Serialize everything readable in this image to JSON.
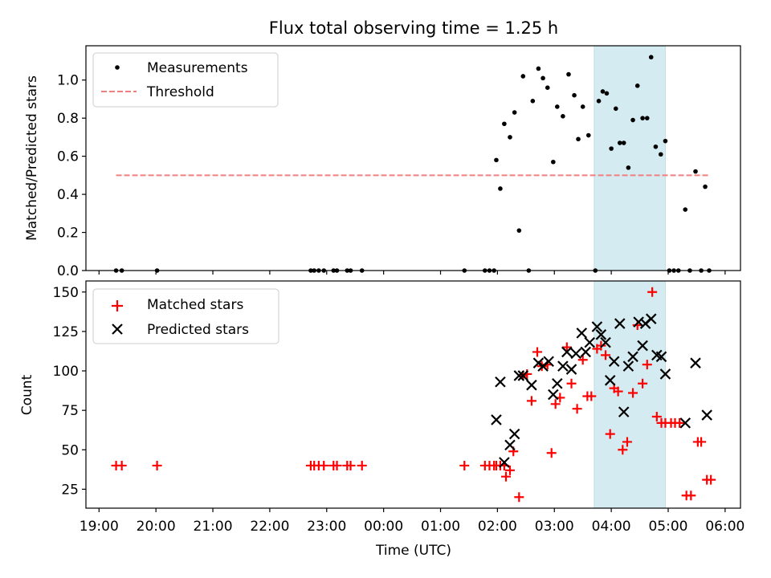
{
  "chart_data": [
    {
      "type": "scatter",
      "title": "Flux total observing time = 1.25 h",
      "xlabel": "",
      "ylabel": "Matched/Predicted stars",
      "xlim": [
        18.77,
        6.27
      ],
      "ylim": [
        0.0,
        1.18
      ],
      "yticks": [
        0.0,
        0.2,
        0.4,
        0.6,
        0.8,
        1.0
      ],
      "ytick_labels": [
        "0.0",
        "0.2",
        "0.4",
        "0.6",
        "0.8",
        "1.0"
      ],
      "shaded_span": [
        3.7,
        4.95
      ],
      "shade_color": "#d4ebf1",
      "legend": {
        "position": "top-left",
        "entries": [
          "Measurements",
          "Threshold"
        ]
      },
      "series": [
        {
          "name": "Measurements",
          "marker": "dot",
          "color": "#000000",
          "points": [
            [
              19.3,
              0.0
            ],
            [
              19.4,
              0.0
            ],
            [
              20.02,
              0.0
            ],
            [
              22.72,
              0.0
            ],
            [
              22.78,
              0.0
            ],
            [
              22.86,
              0.0
            ],
            [
              22.95,
              0.0
            ],
            [
              23.12,
              0.0
            ],
            [
              23.18,
              0.0
            ],
            [
              23.36,
              0.0
            ],
            [
              23.42,
              0.0
            ],
            [
              23.62,
              0.0
            ],
            [
              1.42,
              0.0
            ],
            [
              1.78,
              0.0
            ],
            [
              1.86,
              0.0
            ],
            [
              1.94,
              0.0
            ],
            [
              1.98,
              0.58
            ],
            [
              2.05,
              0.43
            ],
            [
              2.12,
              0.77
            ],
            [
              2.22,
              0.7
            ],
            [
              2.3,
              0.83
            ],
            [
              2.38,
              0.21
            ],
            [
              2.45,
              1.02
            ],
            [
              2.55,
              0.0
            ],
            [
              2.62,
              0.89
            ],
            [
              2.72,
              1.06
            ],
            [
              2.8,
              1.01
            ],
            [
              2.88,
              0.96
            ],
            [
              2.98,
              0.57
            ],
            [
              3.05,
              0.86
            ],
            [
              3.15,
              0.81
            ],
            [
              3.25,
              1.03
            ],
            [
              3.35,
              0.92
            ],
            [
              3.42,
              0.69
            ],
            [
              3.5,
              0.86
            ],
            [
              3.6,
              0.71
            ],
            [
              3.72,
              0.0
            ],
            [
              3.78,
              0.89
            ],
            [
              3.85,
              0.94
            ],
            [
              3.92,
              0.93
            ],
            [
              4.0,
              0.64
            ],
            [
              4.08,
              0.85
            ],
            [
              4.15,
              0.67
            ],
            [
              4.22,
              0.67
            ],
            [
              4.3,
              0.54
            ],
            [
              4.38,
              0.79
            ],
            [
              4.46,
              0.97
            ],
            [
              4.55,
              0.8
            ],
            [
              4.63,
              0.8
            ],
            [
              4.7,
              1.12
            ],
            [
              4.78,
              0.65
            ],
            [
              4.87,
              0.61
            ],
            [
              4.95,
              0.68
            ],
            [
              5.02,
              0.0
            ],
            [
              5.1,
              0.0
            ],
            [
              5.18,
              0.0
            ],
            [
              5.3,
              0.32
            ],
            [
              5.38,
              0.0
            ],
            [
              5.48,
              0.52
            ],
            [
              5.58,
              0.0
            ],
            [
              5.65,
              0.44
            ],
            [
              5.72,
              0.0
            ]
          ]
        },
        {
          "name": "Threshold",
          "style": "dashed",
          "color": "#f08080",
          "x": [
            19.3,
            5.72
          ],
          "y": [
            0.5,
            0.5
          ]
        }
      ]
    },
    {
      "type": "scatter",
      "xlabel": "Time (UTC)",
      "ylabel": "Count",
      "xlim": [
        18.77,
        6.27
      ],
      "ylim": [
        13,
        157
      ],
      "xticks": [
        19,
        20,
        21,
        22,
        23,
        0,
        1,
        2,
        3,
        4,
        5,
        6
      ],
      "xtick_labels": [
        "19:00",
        "20:00",
        "21:00",
        "22:00",
        "23:00",
        "00:00",
        "01:00",
        "02:00",
        "03:00",
        "04:00",
        "05:00",
        "06:00"
      ],
      "yticks": [
        25,
        50,
        75,
        100,
        125,
        150
      ],
      "ytick_labels": [
        "25",
        "50",
        "75",
        "100",
        "125",
        "150"
      ],
      "shaded_span": [
        3.7,
        4.95
      ],
      "shade_color": "#d4ebf1",
      "legend": {
        "position": "top-left",
        "entries": [
          "Matched stars",
          "Predicted stars"
        ]
      },
      "series": [
        {
          "name": "Matched stars",
          "marker": "plus",
          "color": "#ff0000",
          "points": [
            [
              19.3,
              40
            ],
            [
              19.4,
              40
            ],
            [
              20.02,
              40
            ],
            [
              22.72,
              40
            ],
            [
              22.78,
              40
            ],
            [
              22.86,
              40
            ],
            [
              22.95,
              40
            ],
            [
              23.12,
              40
            ],
            [
              23.18,
              40
            ],
            [
              23.36,
              40
            ],
            [
              23.42,
              40
            ],
            [
              23.62,
              40
            ],
            [
              1.42,
              40
            ],
            [
              1.78,
              40
            ],
            [
              1.86,
              40
            ],
            [
              1.94,
              40
            ],
            [
              1.98,
              40
            ],
            [
              2.05,
              40
            ],
            [
              2.12,
              40
            ],
            [
              2.15,
              33
            ],
            [
              2.22,
              37
            ],
            [
              2.28,
              49
            ],
            [
              2.38,
              20
            ],
            [
              2.45,
              97
            ],
            [
              2.52,
              98
            ],
            [
              2.6,
              81
            ],
            [
              2.7,
              112
            ],
            [
              2.78,
              103
            ],
            [
              2.88,
              104
            ],
            [
              2.95,
              48
            ],
            [
              3.02,
              79
            ],
            [
              3.1,
              83
            ],
            [
              3.22,
              115
            ],
            [
              3.3,
              92
            ],
            [
              3.4,
              76
            ],
            [
              3.5,
              107
            ],
            [
              3.58,
              84
            ],
            [
              3.65,
              84
            ],
            [
              3.75,
              114
            ],
            [
              3.82,
              116
            ],
            [
              3.9,
              110
            ],
            [
              3.98,
              60
            ],
            [
              4.05,
              89
            ],
            [
              4.12,
              87
            ],
            [
              4.2,
              50
            ],
            [
              4.28,
              55
            ],
            [
              4.38,
              86
            ],
            [
              4.46,
              129
            ],
            [
              4.55,
              92
            ],
            [
              4.63,
              104
            ],
            [
              4.72,
              150
            ],
            [
              4.8,
              71
            ],
            [
              4.88,
              67
            ],
            [
              4.95,
              67
            ],
            [
              5.05,
              67
            ],
            [
              5.12,
              67
            ],
            [
              5.2,
              67
            ],
            [
              5.32,
              21
            ],
            [
              5.4,
              21
            ],
            [
              5.52,
              55
            ],
            [
              5.58,
              55
            ],
            [
              5.68,
              31
            ],
            [
              5.75,
              31
            ]
          ]
        },
        {
          "name": "Predicted stars",
          "marker": "x",
          "color": "#000000",
          "points": [
            [
              1.98,
              69
            ],
            [
              2.05,
              93
            ],
            [
              2.12,
              42
            ],
            [
              2.22,
              53
            ],
            [
              2.3,
              60
            ],
            [
              2.38,
              97
            ],
            [
              2.45,
              97
            ],
            [
              2.6,
              91
            ],
            [
              2.72,
              105
            ],
            [
              2.8,
              103
            ],
            [
              2.9,
              106
            ],
            [
              2.98,
              85
            ],
            [
              3.05,
              92
            ],
            [
              3.15,
              103
            ],
            [
              3.22,
              112
            ],
            [
              3.3,
              101
            ],
            [
              3.38,
              111
            ],
            [
              3.48,
              124
            ],
            [
              3.55,
              112
            ],
            [
              3.62,
              118
            ],
            [
              3.75,
              128
            ],
            [
              3.82,
              123
            ],
            [
              3.9,
              118
            ],
            [
              3.98,
              94
            ],
            [
              4.05,
              106
            ],
            [
              4.15,
              130
            ],
            [
              4.22,
              74
            ],
            [
              4.3,
              103
            ],
            [
              4.38,
              109
            ],
            [
              4.48,
              131
            ],
            [
              4.55,
              116
            ],
            [
              4.6,
              130
            ],
            [
              4.7,
              133
            ],
            [
              4.8,
              110
            ],
            [
              4.88,
              109
            ],
            [
              4.95,
              98
            ],
            [
              5.3,
              67
            ],
            [
              5.48,
              105
            ],
            [
              5.68,
              72
            ]
          ]
        }
      ]
    }
  ]
}
